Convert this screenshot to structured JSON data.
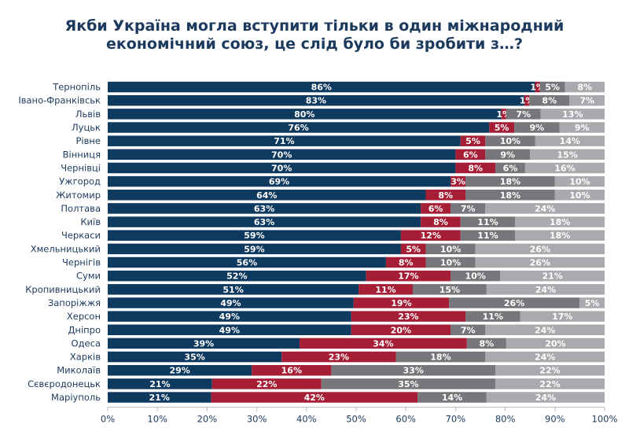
{
  "chart_data": {
    "type": "bar",
    "orientation": "horizontal",
    "stacked": true,
    "title": "Якби Україна могла вступити тільки в один міжнародний економічний союз, це слід було би зробити з…?",
    "title_lines": [
      "Якби Україна могла вступити тільки в один міжнародний",
      "економічний союз, це слід було би зробити з…?"
    ],
    "categories": [
      "Тернопіль",
      "Івано-Франківськ",
      "Львів",
      "Луцьк",
      "Рівне",
      "Вінниця",
      "Чернівці",
      "Ужгород",
      "Житомир",
      "Полтава",
      "Київ",
      "Черкаси",
      "Хмельницький",
      "Чернігів",
      "Суми",
      "Кропивницький",
      "Запоріжжя",
      "Херсон",
      "Дніпро",
      "Одеса",
      "Харків",
      "Миколаїв",
      "Сєвєродонецьк",
      "Маріуполь"
    ],
    "series": [
      {
        "color": "#0f3a5f",
        "values": [
          86,
          83,
          80,
          76,
          71,
          70,
          70,
          69,
          64,
          63,
          63,
          59,
          59,
          56,
          52,
          51,
          49,
          49,
          49,
          39,
          35,
          29,
          21,
          21
        ]
      },
      {
        "color": "#a61e36",
        "values": [
          1,
          1,
          1,
          5,
          5,
          6,
          8,
          3,
          8,
          6,
          8,
          12,
          5,
          8,
          17,
          11,
          19,
          23,
          20,
          34,
          23,
          16,
          22,
          42
        ]
      },
      {
        "color": "#77777b",
        "values": [
          5,
          8,
          7,
          9,
          10,
          9,
          6,
          18,
          18,
          7,
          11,
          11,
          10,
          10,
          10,
          15,
          26,
          11,
          7,
          8,
          18,
          33,
          35,
          14
        ]
      },
      {
        "color": "#aaaaae",
        "values": [
          8,
          7,
          13,
          9,
          14,
          15,
          16,
          10,
          10,
          24,
          18,
          18,
          26,
          26,
          21,
          24,
          5,
          17,
          24,
          20,
          24,
          22,
          22,
          24
        ]
      }
    ],
    "xlim": [
      0,
      100
    ],
    "xticks": [
      "0%",
      "10%",
      "20%",
      "30%",
      "40%",
      "50%",
      "60%",
      "70%",
      "80%",
      "90%",
      "100%"
    ],
    "grid": false,
    "legend": "none"
  }
}
